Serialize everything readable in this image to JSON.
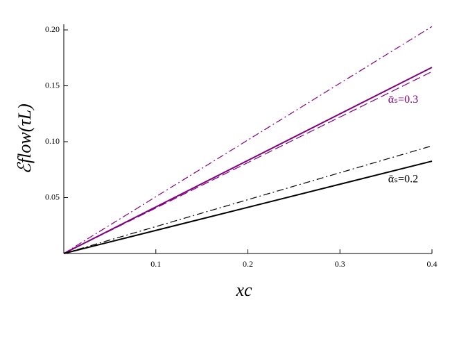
{
  "chart_data": {
    "type": "line",
    "x_label": "xc",
    "y_label": "ℰflow(τL)",
    "x": [
      0,
      0.4
    ],
    "series": [
      {
        "color": "#800080",
        "dash": "dashdot",
        "width": 1.2,
        "values": [
          0,
          0.203
        ]
      },
      {
        "color": "#800080",
        "dash": "solid",
        "width": 2,
        "values": [
          0,
          0.1665
        ]
      },
      {
        "color": "#800080",
        "dash": "dashed",
        "width": 1.2,
        "values": [
          0,
          0.1627
        ]
      },
      {
        "color": "#000000",
        "dash": "dashdot",
        "width": 1.2,
        "values": [
          0,
          0.0963
        ]
      },
      {
        "color": "#000000",
        "dash": "solid",
        "width": 2,
        "values": [
          0,
          0.0826
        ]
      }
    ],
    "annotations": [
      {
        "text": "ᾱₛ=0.3",
        "color": "#800080",
        "x": 0.385,
        "y": 0.137
      },
      {
        "text": "ᾱₛ=0.2",
        "color": "#000000",
        "x": 0.385,
        "y": 0.066
      }
    ],
    "xlim": [
      0,
      0.4
    ],
    "ylim": [
      0,
      0.205
    ],
    "xticks": [
      0.1,
      0.2,
      0.3,
      0.4
    ],
    "yticks": [
      {
        "value": 0.05,
        "label": "0.05"
      },
      {
        "value": 0.1,
        "label": "0.10"
      },
      0.15,
      {
        "value": 0.2,
        "label": "0.20"
      }
    ]
  }
}
